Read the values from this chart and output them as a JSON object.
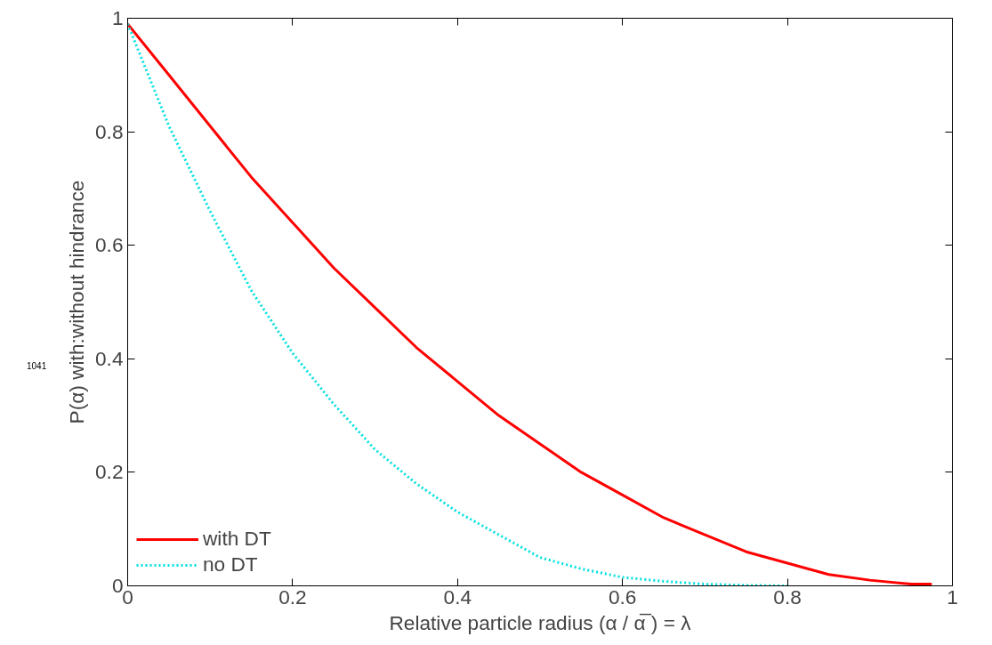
{
  "chart_data": {
    "type": "line",
    "xlabel": "Relative particle radius (α / α̅ ) = λ",
    "ylabel": "P(α) with:without hindrance",
    "annotations": [
      "1041"
    ],
    "x": [
      0,
      0.05,
      0.1,
      0.15,
      0.2,
      0.25,
      0.3,
      0.35,
      0.4,
      0.45,
      0.5,
      0.55,
      0.6,
      0.65,
      0.7,
      0.75,
      0.8,
      0.85,
      0.9,
      0.95,
      0.975
    ],
    "series": [
      {
        "name": "with DT",
        "color": "#ff0000",
        "line_style": "solid",
        "values": [
          0.99,
          0.9,
          0.81,
          0.72,
          0.64,
          0.56,
          0.49,
          0.42,
          0.36,
          0.3,
          0.25,
          0.2,
          0.16,
          0.12,
          0.09,
          0.06,
          0.04,
          0.02,
          0.01,
          0.003,
          0.003
        ]
      },
      {
        "name": "no DT",
        "color": "#00e0e0",
        "line_style": "dotted",
        "x": [
          0,
          0.05,
          0.1,
          0.15,
          0.2,
          0.25,
          0.3,
          0.35,
          0.4,
          0.45,
          0.5,
          0.55,
          0.6,
          0.65,
          0.7,
          0.75,
          0.8
        ],
        "values": [
          0.99,
          0.81,
          0.66,
          0.52,
          0.41,
          0.32,
          0.24,
          0.18,
          0.13,
          0.09,
          0.05,
          0.03,
          0.015,
          0.008,
          0.003,
          0.001,
          0
        ]
      }
    ],
    "xlim": [
      0,
      1
    ],
    "ylim": [
      0,
      1
    ],
    "xticks": [
      0,
      0.2,
      0.4,
      0.6,
      0.8,
      1
    ],
    "yticks": [
      0,
      0.2,
      0.4,
      0.6,
      0.8,
      1
    ],
    "grid": false,
    "legend": "bottom left",
    "marker": "none"
  }
}
